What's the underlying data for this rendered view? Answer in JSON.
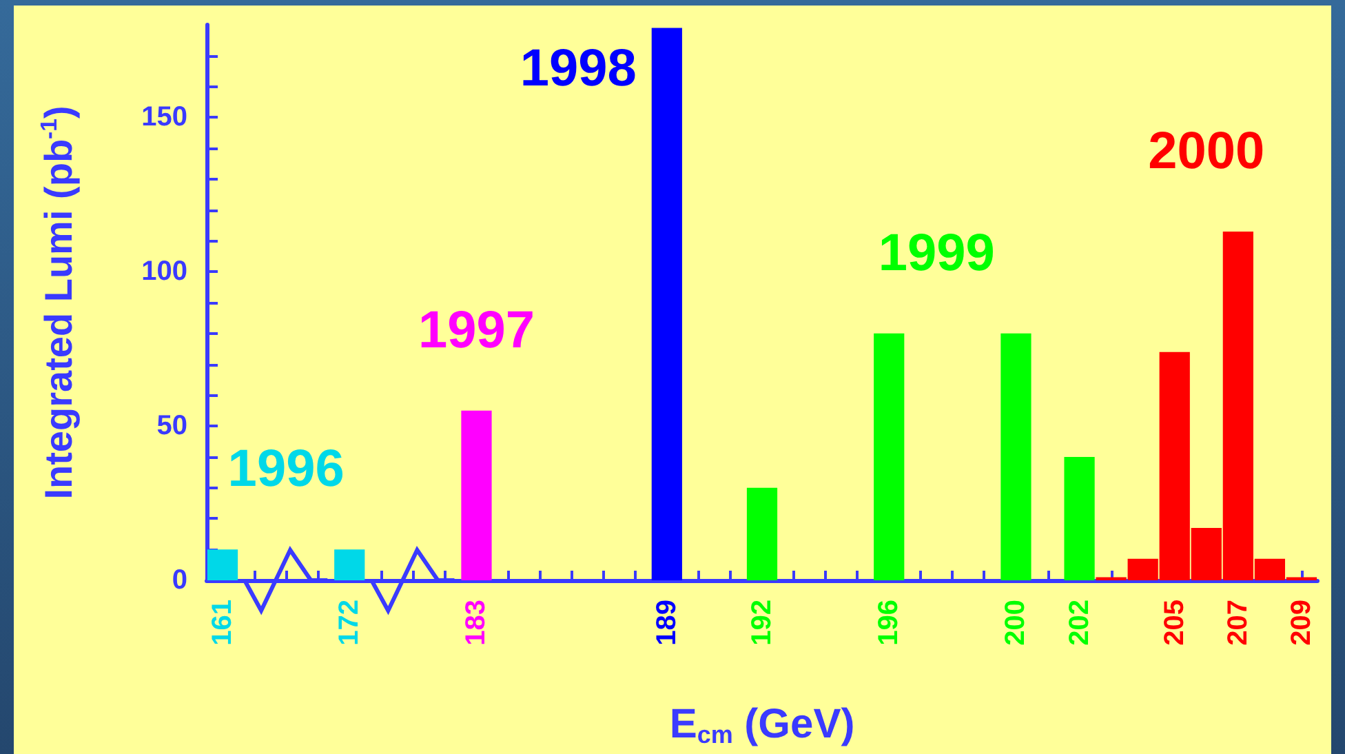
{
  "chart_data": {
    "type": "bar",
    "xlabel": "E$_{cm}$ (GeV)",
    "ylabel": "Integrated Lumi (pb$^{-1}$)",
    "categories": [
      "161",
      null,
      null,
      null,
      "172",
      null,
      null,
      null,
      "183",
      null,
      null,
      null,
      null,
      null,
      "189",
      null,
      null,
      "192",
      null,
      null,
      null,
      "196",
      null,
      null,
      null,
      "200",
      null,
      "202",
      null,
      null,
      "205",
      null,
      "207",
      null,
      "209"
    ],
    "series": [
      {
        "name": "1996",
        "color": "#00d8e8",
        "values": [
          10,
          null,
          null,
          null,
          10,
          null,
          null,
          null,
          null,
          null,
          null,
          null,
          null,
          null,
          null,
          null,
          null,
          null,
          null,
          null,
          null,
          null,
          null,
          null,
          null,
          null,
          null,
          null,
          null,
          null,
          null,
          null,
          null,
          null,
          null
        ]
      },
      {
        "name": "1997",
        "color": "#ff00ff",
        "values": [
          null,
          null,
          null,
          null,
          null,
          null,
          null,
          null,
          55,
          null,
          null,
          null,
          null,
          null,
          null,
          null,
          null,
          null,
          null,
          null,
          null,
          null,
          null,
          null,
          null,
          null,
          null,
          null,
          null,
          null,
          null,
          null,
          null,
          null,
          null
        ]
      },
      {
        "name": "1998",
        "color": "#0000ff",
        "values": [
          null,
          null,
          null,
          null,
          null,
          null,
          null,
          null,
          null,
          null,
          null,
          null,
          null,
          null,
          179,
          null,
          null,
          null,
          null,
          null,
          null,
          null,
          null,
          null,
          null,
          null,
          null,
          null,
          null,
          null,
          null,
          null,
          null,
          null,
          null
        ]
      },
      {
        "name": "1999",
        "color": "#00ff00",
        "values": [
          null,
          null,
          null,
          null,
          null,
          null,
          null,
          null,
          null,
          null,
          null,
          null,
          null,
          null,
          null,
          null,
          null,
          30,
          null,
          null,
          null,
          80,
          null,
          null,
          null,
          80,
          null,
          40,
          null,
          null,
          null,
          null,
          null,
          null,
          null
        ]
      },
      {
        "name": "2000",
        "color": "#ff0000",
        "values": [
          null,
          null,
          null,
          null,
          null,
          null,
          null,
          null,
          null,
          null,
          null,
          null,
          null,
          null,
          null,
          null,
          null,
          null,
          null,
          null,
          null,
          null,
          null,
          null,
          null,
          null,
          null,
          null,
          1,
          7,
          74,
          17,
          113,
          7,
          1
        ]
      }
    ],
    "ylim": [
      0,
      180
    ],
    "yticks": [
      0,
      {
        "value": 10,
        "label": null
      },
      {
        "value": 20,
        "label": null
      },
      {
        "value": 30,
        "label": null
      },
      {
        "value": 40,
        "label": null
      },
      50,
      {
        "value": 60,
        "label": null
      },
      {
        "value": 70,
        "label": null
      },
      {
        "value": 80,
        "label": null
      },
      {
        "value": 90,
        "label": null
      },
      100,
      {
        "value": 110,
        "label": null
      },
      {
        "value": 120,
        "label": null
      },
      {
        "value": 130,
        "label": null
      },
      {
        "value": 140,
        "label": null
      },
      150,
      {
        "value": 160,
        "label": null
      },
      {
        "value": 170,
        "label": null
      }
    ],
    "grid": false,
    "legend": false
  }
}
